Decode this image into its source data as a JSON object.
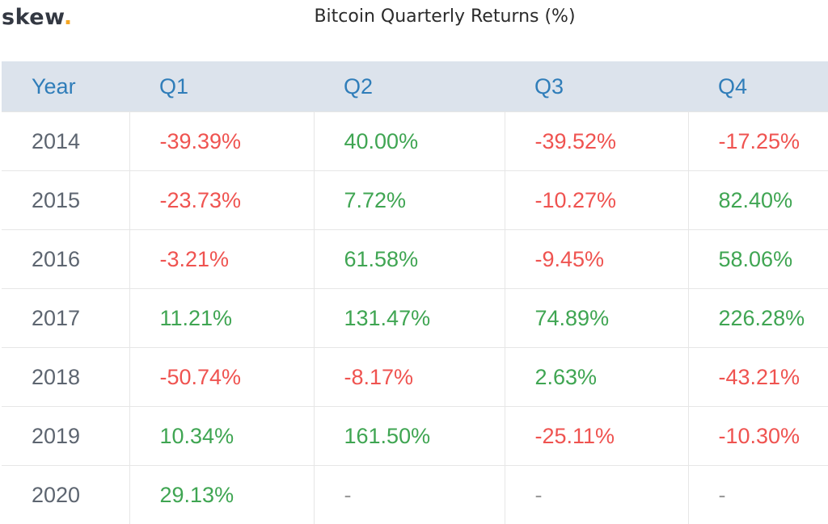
{
  "brand": {
    "name": "skew",
    "dot": "."
  },
  "chart_data": {
    "type": "table",
    "title": "Bitcoin Quarterly Returns (%)",
    "columns": [
      "Year",
      "Q1",
      "Q2",
      "Q3",
      "Q4"
    ],
    "rows": [
      {
        "year": "2014",
        "values": [
          "-39.39%",
          "40.00%",
          "-39.52%",
          "-17.25%"
        ]
      },
      {
        "year": "2015",
        "values": [
          "-23.73%",
          "7.72%",
          "-10.27%",
          "82.40%"
        ]
      },
      {
        "year": "2016",
        "values": [
          "-3.21%",
          "61.58%",
          "-9.45%",
          "58.06%"
        ]
      },
      {
        "year": "2017",
        "values": [
          "11.21%",
          "131.47%",
          "74.89%",
          "226.28%"
        ]
      },
      {
        "year": "2018",
        "values": [
          "-50.74%",
          "-8.17%",
          "2.63%",
          "-43.21%"
        ]
      },
      {
        "year": "2019",
        "values": [
          "10.34%",
          "161.50%",
          "-25.11%",
          "-10.30%"
        ]
      },
      {
        "year": "2020",
        "values": [
          "29.13%",
          "-",
          "-",
          "-"
        ]
      }
    ],
    "colors": {
      "positive": "#3fa552",
      "negative": "#ef5350",
      "header_text": "#2f7db9",
      "header_bg": "#dce3ec"
    }
  }
}
